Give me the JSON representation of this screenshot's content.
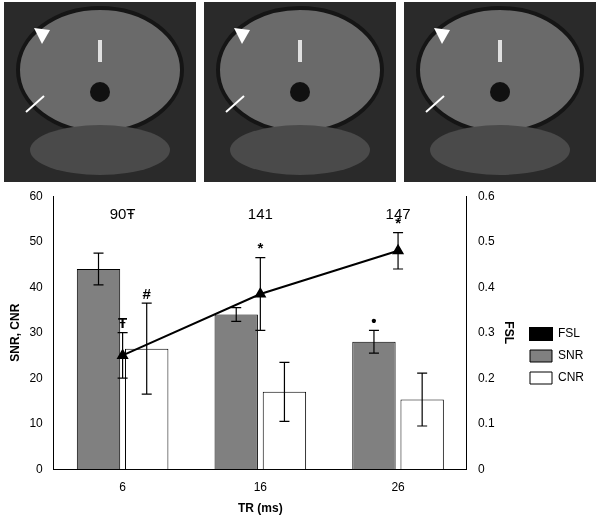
{
  "chart_data": {
    "type": "bar",
    "categories": [
      "6",
      "16",
      "26"
    ],
    "x_label": "TR (ms)",
    "y_label": "SNR, CNR",
    "y2_label": "FSL",
    "ylim": [
      0,
      60
    ],
    "yticks": [
      0,
      10,
      20,
      30,
      40,
      50,
      60
    ],
    "y2lim": [
      0,
      0.6
    ],
    "y2ticks": [
      0,
      0.1,
      0.2,
      0.3,
      0.4,
      0.5,
      0.6
    ],
    "grid": false,
    "legend": "right",
    "series": [
      {
        "name": "SNR",
        "type": "bar",
        "color": "#808080",
        "values": [
          44,
          34,
          28
        ],
        "errors": [
          3.5,
          1.5,
          2.5
        ]
      },
      {
        "name": "CNR",
        "type": "bar",
        "color": "#ffffff",
        "values": [
          26.5,
          17,
          15.3
        ],
        "errors": [
          10,
          6.5,
          5.8
        ]
      },
      {
        "name": "FSL",
        "type": "line",
        "axis": "y2",
        "color": "#000000",
        "marker": "triangle",
        "line_style": "solid",
        "values": [
          0.25,
          0.385,
          0.48
        ],
        "errors": [
          0.05,
          0.08,
          0.04
        ]
      }
    ],
    "annotations": [
      {
        "text": "90Ŧ",
        "category": "6"
      },
      {
        "text": "141",
        "category": "16"
      },
      {
        "text": "147",
        "category": "26"
      },
      {
        "text": "#",
        "category": "6",
        "series": "CNR"
      },
      {
        "text": "Ŧ",
        "category": "6",
        "series": "FSL"
      },
      {
        "text": "*",
        "category": "16",
        "series": "FSL"
      },
      {
        "text": "*",
        "category": "26",
        "series": "FSL"
      },
      {
        "text": "•",
        "category": "26",
        "series": "SNR"
      }
    ]
  }
}
